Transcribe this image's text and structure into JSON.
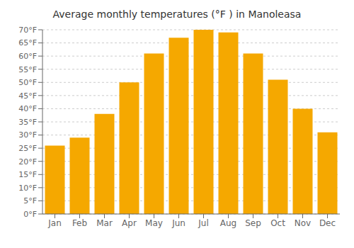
{
  "chart_data": {
    "type": "bar",
    "title": "Average monthly temperatures (°F ) in Manoleasa",
    "categories": [
      "Jan",
      "Feb",
      "Mar",
      "Apr",
      "May",
      "Jun",
      "Jul",
      "Aug",
      "Sep",
      "Oct",
      "Nov",
      "Dec"
    ],
    "values": [
      26,
      29,
      38,
      50,
      61,
      67,
      70,
      69,
      61,
      51,
      40,
      31
    ],
    "color": "#F5A800",
    "ylim": [
      0,
      70
    ],
    "yticks": [
      {
        "value": 0,
        "label": "0°F"
      },
      {
        "value": 5,
        "label": "5°F"
      },
      {
        "value": 10,
        "label": "10°F"
      },
      {
        "value": 15,
        "label": "15°F"
      },
      {
        "value": 20,
        "label": "20°F"
      },
      {
        "value": 25,
        "label": "25°F"
      },
      {
        "value": 30,
        "label": "30°F"
      },
      {
        "value": 35,
        "label": "35°F"
      },
      {
        "value": 40,
        "label": "40°F"
      },
      {
        "value": 45,
        "label": "45°F"
      },
      {
        "value": 50,
        "label": "50°F"
      },
      {
        "value": 55,
        "label": "55°F"
      },
      {
        "value": 60,
        "label": "60°F"
      },
      {
        "value": 65,
        "label": "65°F"
      },
      {
        "value": 70,
        "label": "70°F"
      }
    ],
    "grid": true
  }
}
